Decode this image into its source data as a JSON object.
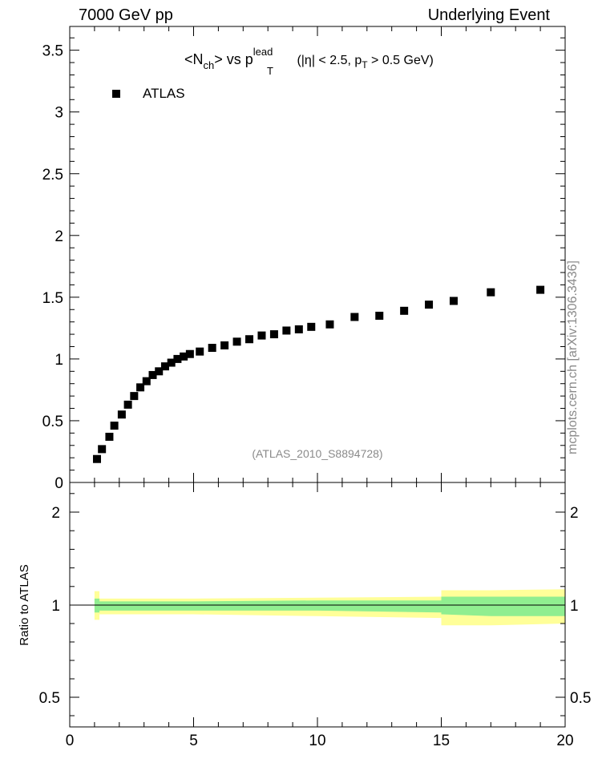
{
  "header": {
    "left": "7000 GeV pp",
    "right": "Underlying Event",
    "watermark": "mcplots.cern.ch [arXiv:1306.3436]"
  },
  "chart_data": [
    {
      "type": "scatter",
      "title_parts": {
        "open": "<N",
        "sub1": "ch",
        "mid": "> vs p",
        "sup": "lead",
        "sub2": "T",
        "paren1": " (|η| < 2.5, p",
        "sub3": "T",
        "paren2": " > 0.5 GeV)"
      },
      "legend": [
        "ATLAS"
      ],
      "legend_position": "top-left",
      "analysis_label": "(ATLAS_2010_S8894728)",
      "xlim": [
        0,
        20
      ],
      "ylim": [
        0,
        3.7
      ],
      "ytick_labels": [
        "0",
        "0.5",
        "1",
        "1.5",
        "2",
        "2.5",
        "3",
        "3.5"
      ],
      "grid": false,
      "series": [
        {
          "name": "ATLAS",
          "x": [
            1.1,
            1.3,
            1.6,
            1.8,
            2.1,
            2.35,
            2.6,
            2.85,
            3.1,
            3.35,
            3.6,
            3.85,
            4.1,
            4.35,
            4.6,
            4.85,
            5.25,
            5.75,
            6.25,
            6.75,
            7.25,
            7.75,
            8.25,
            8.75,
            9.25,
            9.75,
            10.5,
            11.5,
            12.5,
            13.5,
            14.5,
            15.5,
            17,
            19
          ],
          "y": [
            0.19,
            0.27,
            0.37,
            0.46,
            0.55,
            0.63,
            0.7,
            0.77,
            0.82,
            0.87,
            0.9,
            0.94,
            0.97,
            1.0,
            1.02,
            1.04,
            1.06,
            1.09,
            1.11,
            1.14,
            1.16,
            1.19,
            1.2,
            1.23,
            1.24,
            1.26,
            1.28,
            1.34,
            1.35,
            1.39,
            1.44,
            1.47,
            1.54,
            1.56
          ]
        }
      ]
    },
    {
      "type": "area",
      "ylabel": "Ratio to ATLAS",
      "xlim": [
        0,
        20
      ],
      "ylim": [
        0.35,
        2.3
      ],
      "xtick_labels": [
        "0",
        "5",
        "10",
        "15",
        "20"
      ],
      "ytick_labels": [
        "0.5",
        "1",
        "2"
      ],
      "reference_line": 1,
      "bands": [
        {
          "color": "#ffff99",
          "x": [
            1,
            1.2,
            1.2,
            5,
            10,
            15,
            15,
            17,
            20
          ],
          "upper": [
            1.15,
            1.15,
            1.07,
            1.07,
            1.08,
            1.09,
            1.16,
            1.16,
            1.17
          ],
          "lower": [
            0.92,
            0.92,
            0.95,
            0.95,
            0.94,
            0.93,
            0.89,
            0.89,
            0.9
          ]
        },
        {
          "color": "#90ee90",
          "x": [
            1,
            1.2,
            1.2,
            5,
            10,
            15,
            15,
            17,
            20
          ],
          "upper": [
            1.07,
            1.07,
            1.04,
            1.04,
            1.05,
            1.05,
            1.09,
            1.09,
            1.09
          ],
          "lower": [
            0.96,
            0.96,
            0.97,
            0.97,
            0.97,
            0.96,
            0.95,
            0.94,
            0.94
          ]
        }
      ]
    }
  ]
}
